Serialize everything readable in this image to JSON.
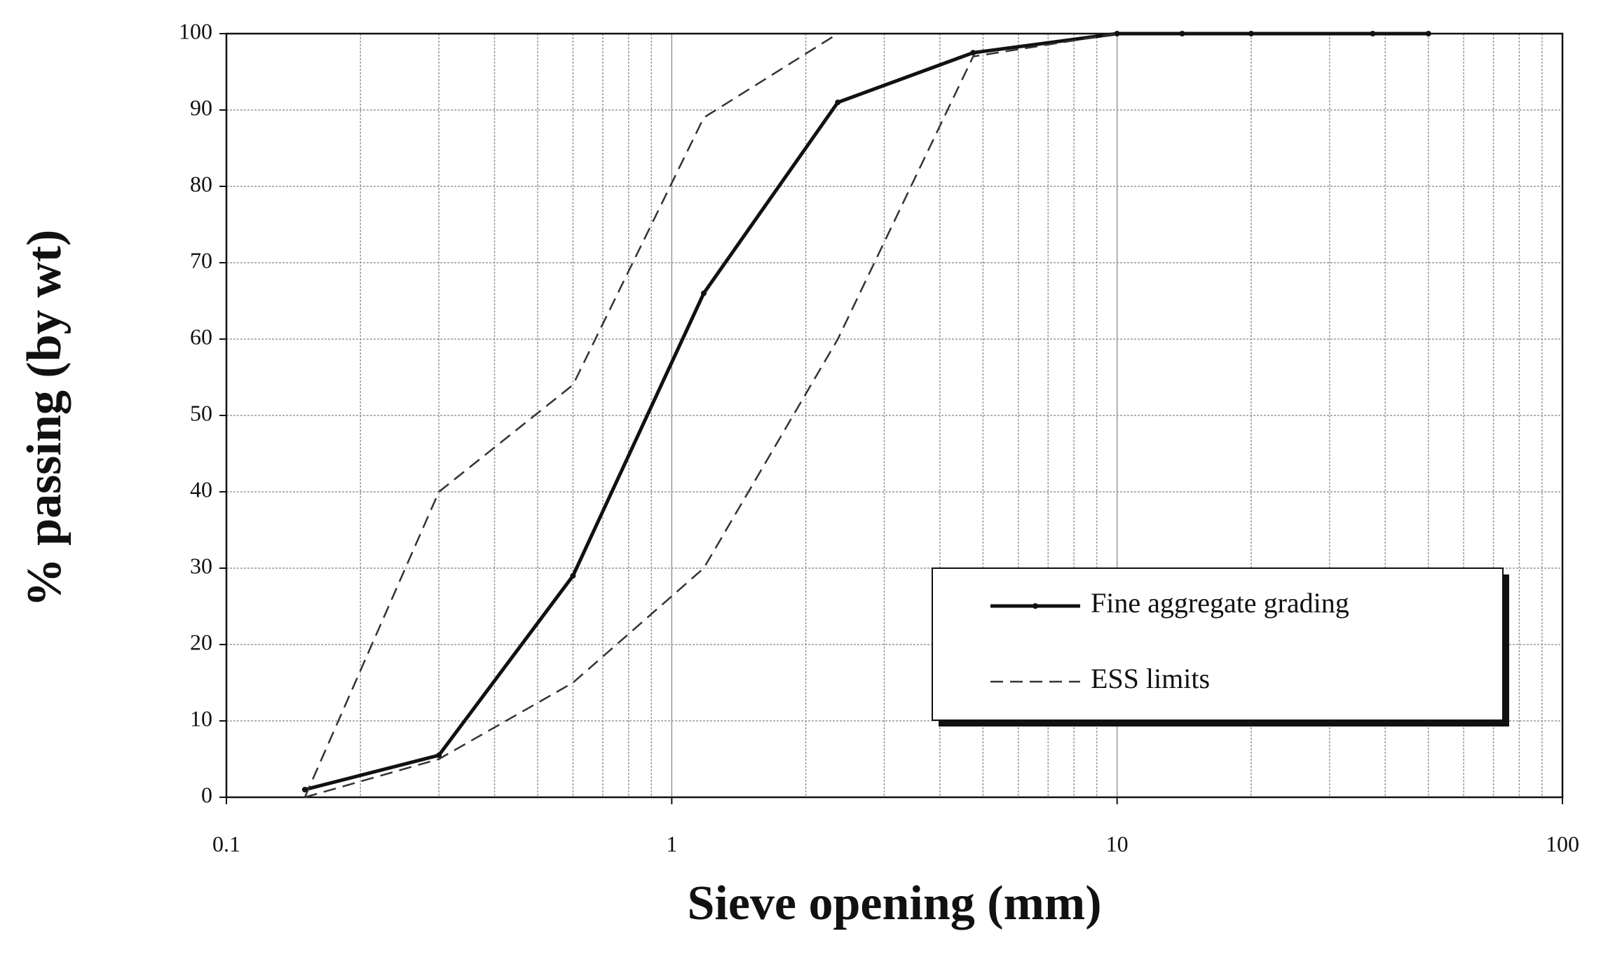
{
  "chart_data": {
    "type": "line",
    "x_label": "Sieve opening (mm)",
    "y_label": "% passing (by wt)",
    "log_x": true,
    "grid": true,
    "legend": "lower right",
    "xlim": [
      0.1,
      100
    ],
    "xticks": [
      0.1,
      1,
      10,
      100
    ],
    "ylim": [
      0,
      100
    ],
    "yticks": [
      0,
      10,
      20,
      30,
      40,
      50,
      60,
      70,
      80,
      90,
      100
    ],
    "series": [
      {
        "name": "Fine aggregate grading",
        "color": "#111111",
        "dashed": false,
        "markers": true,
        "x": [
          0.15,
          0.3,
          0.6,
          1.18,
          2.36,
          4.75,
          10,
          14,
          20,
          37.5,
          50
        ],
        "values": [
          1,
          5.5,
          29,
          66,
          91,
          97.5,
          100,
          100,
          100,
          100,
          100
        ]
      },
      {
        "name": "ESS limits",
        "color": "#333333",
        "dashed": true,
        "markers": false,
        "x": [
          0.15,
          0.3,
          0.6,
          1.18,
          2.36
        ],
        "values": [
          0,
          40,
          54,
          89,
          100
        ]
      },
      {
        "color": "#333333",
        "dashed": true,
        "markers": false,
        "x": [
          0.15,
          0.3,
          0.6,
          1.18,
          2.36,
          4.75,
          10
        ],
        "values": [
          0,
          5,
          15,
          30,
          60,
          97,
          100
        ]
      }
    ]
  }
}
